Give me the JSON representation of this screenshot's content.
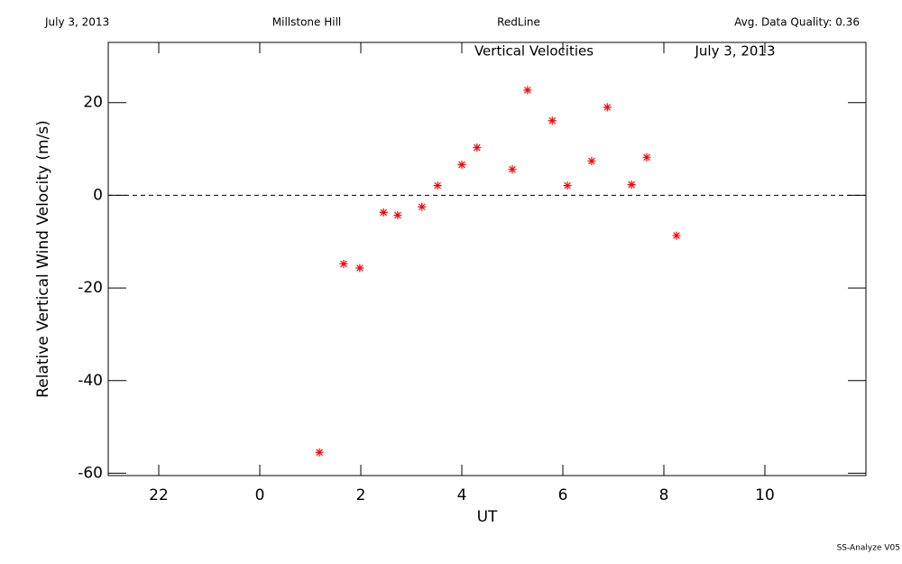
{
  "header": {
    "date": "July 3, 2013",
    "site": "Millstone Hill",
    "line": "RedLine",
    "quality": "Avg. Data Quality: 0.36"
  },
  "footer": "SS-Analyze V05",
  "chart_data": {
    "type": "scatter",
    "title": "Vertical Velocities",
    "subtitle": "July 3, 2013",
    "x_label": "UT",
    "y_label": "Relative Vertical Wind Velocity (m/s)",
    "color": "#ff0000",
    "marker": "*",
    "x": [
      1.18,
      1.66,
      1.98,
      2.45,
      2.73,
      3.21,
      3.52,
      4.0,
      4.3,
      5.0,
      5.3,
      5.79,
      6.09,
      6.57,
      6.88,
      7.36,
      7.66,
      8.25
    ],
    "values": [
      -55.5,
      -14.8,
      -15.7,
      -3.7,
      -4.3,
      -2.5,
      2.1,
      6.6,
      10.3,
      5.6,
      22.7,
      16.1,
      2.1,
      7.4,
      19.0,
      2.3,
      8.2,
      -8.7
    ],
    "xlim": [
      -3,
      12
    ],
    "xticks": [
      {
        "value": -2,
        "label": "22"
      },
      0,
      2,
      4,
      6,
      8,
      10
    ],
    "ylim": [
      -60.5,
      33
    ],
    "yticks": [
      -60,
      -40,
      -20,
      0,
      20
    ],
    "reference_line": 0
  }
}
